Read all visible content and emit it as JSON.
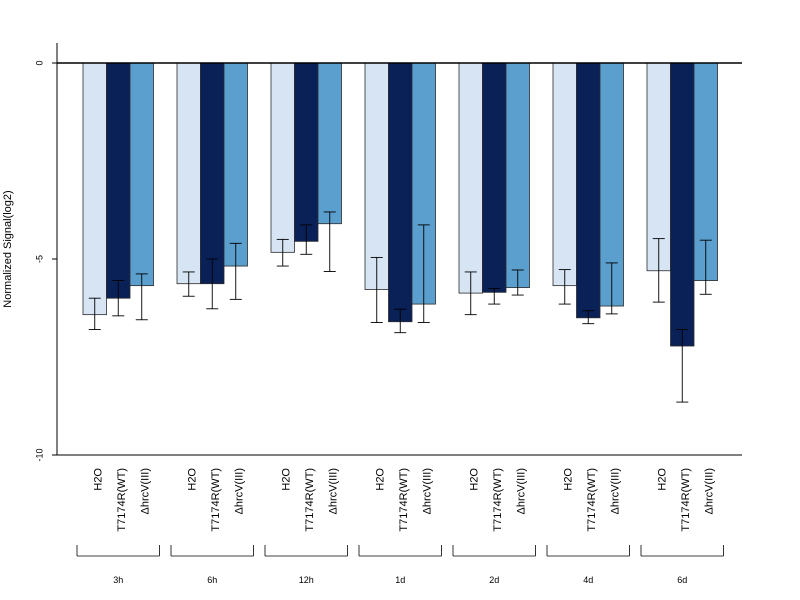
{
  "chart_data": {
    "type": "bar",
    "title": "",
    "xlabel": "",
    "ylabel": "Normalized Signal(log2)",
    "ylim": [
      -10,
      0.5
    ],
    "yticks": [
      0,
      -5,
      -10
    ],
    "grid": false,
    "legend": "none",
    "groups": [
      "3h",
      "6h",
      "12h",
      "1d",
      "2d",
      "4d",
      "6d"
    ],
    "series": [
      {
        "name": "H2O",
        "color": "#d6e4f4",
        "values": [
          -6.42,
          -5.63,
          -4.83,
          -5.78,
          -5.87,
          -5.68,
          -5.3
        ],
        "err_low": [
          -6.8,
          -5.95,
          -5.18,
          -6.62,
          -6.42,
          -6.15,
          -6.1
        ],
        "err_high": [
          -6.0,
          -5.33,
          -4.5,
          -4.96,
          -5.33,
          -5.27,
          -4.48
        ]
      },
      {
        "name": "T7174R(WT)",
        "color": "#0a2158",
        "values": [
          -6.0,
          -5.63,
          -4.55,
          -6.6,
          -5.85,
          -6.5,
          -7.22
        ],
        "err_low": [
          -6.45,
          -6.27,
          -4.88,
          -6.88,
          -6.15,
          -6.65,
          -8.65
        ],
        "err_high": [
          -5.55,
          -5.0,
          -4.13,
          -6.28,
          -5.75,
          -6.32,
          -6.8
        ]
      },
      {
        "name": "ΔhrcV(III)",
        "color": "#5b9fcf",
        "values": [
          -5.68,
          -5.18,
          -4.1,
          -6.15,
          -5.73,
          -6.2,
          -5.55
        ],
        "err_low": [
          -6.55,
          -6.03,
          -5.32,
          -6.62,
          -5.92,
          -6.4,
          -5.9
        ],
        "err_high": [
          -5.38,
          -4.6,
          -3.8,
          -4.13,
          -5.28,
          -5.1,
          -4.52
        ]
      }
    ]
  }
}
